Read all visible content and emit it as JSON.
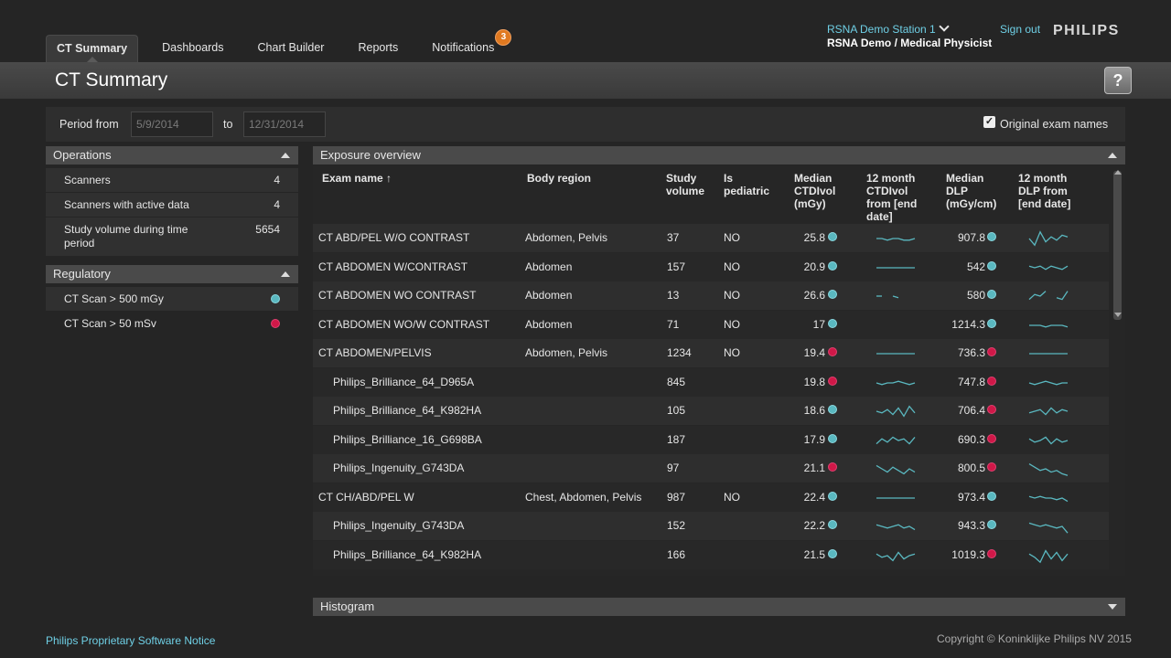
{
  "nav": {
    "tabs": [
      {
        "label": "CT Summary",
        "active": true
      },
      {
        "label": "Dashboards"
      },
      {
        "label": "Chart Builder"
      },
      {
        "label": "Reports"
      },
      {
        "label": "Notifications",
        "badge": "3"
      }
    ]
  },
  "header": {
    "station": "RSNA Demo Station 1",
    "user": "RSNA Demo / Medical Physicist",
    "sign_out": "Sign out",
    "logo": "PHILIPS"
  },
  "page": {
    "title": "CT Summary",
    "help": "?"
  },
  "filter": {
    "period_from_label": "Period from",
    "from": "5/9/2014",
    "to_label": "to",
    "to": "12/31/2014",
    "original_names_label": "Original exam names",
    "original_names_checked": true
  },
  "operations": {
    "title": "Operations",
    "rows": [
      {
        "label": "Scanners",
        "value": "4"
      },
      {
        "label": "Scanners with active data",
        "value": "4"
      },
      {
        "label": "Study volume during time period",
        "value": "5654"
      }
    ]
  },
  "regulatory": {
    "title": "Regulatory",
    "rows": [
      {
        "label": "CT Scan > 500 mGy",
        "status": "teal"
      },
      {
        "label": "CT Scan > 50 mSv",
        "status": "red"
      }
    ]
  },
  "exposure": {
    "title": "Exposure overview",
    "headers": {
      "exam": "Exam name ↑",
      "body": "Body region",
      "volume": "Study volume",
      "pediatric": "Is pediatric",
      "ctdi": "Median CTDIvol (mGy)",
      "ctdi_trend": "12 month CTDIvol from [end date]",
      "dlp": "Median DLP (mGy/cm)",
      "dlp_trend": "12 month DLP from [end date]"
    },
    "rows": [
      {
        "exam": "CT ABD/PEL W/O CONTRAST",
        "body": "Abdomen, Pelvis",
        "volume": "37",
        "pediatric": "NO",
        "ctdi": "25.8",
        "ctdi_status": "teal",
        "dlp": "907.8",
        "dlp_status": "teal",
        "indent": false,
        "ctdi_spark": [
          5,
          5,
          4,
          5,
          5,
          4,
          4,
          5
        ],
        "dlp_spark": [
          5,
          1,
          9,
          3,
          6,
          4,
          7,
          6
        ]
      },
      {
        "exam": "CT ABDOMEN W/CONTRAST",
        "body": "Abdomen",
        "volume": "157",
        "pediatric": "NO",
        "ctdi": "20.9",
        "ctdi_status": "teal",
        "dlp": "542",
        "dlp_status": "teal",
        "indent": false,
        "ctdi_spark": [
          5,
          5,
          5,
          5,
          5,
          5,
          5,
          5
        ],
        "dlp_spark": [
          6,
          5,
          6,
          4,
          6,
          5,
          4,
          6
        ]
      },
      {
        "exam": "CT ABDOMEN WO CONTRAST",
        "body": "Abdomen",
        "volume": "13",
        "pediatric": "NO",
        "ctdi": "26.6",
        "ctdi_status": "teal",
        "dlp": "580",
        "dlp_status": "teal",
        "indent": false,
        "ctdi_spark": [
          5,
          5,
          null,
          5,
          4,
          null,
          null,
          null
        ],
        "dlp_spark": [
          3,
          6,
          5,
          8,
          null,
          4,
          3,
          8
        ]
      },
      {
        "exam": "CT ABDOMEN WO/W CONTRAST",
        "body": "Abdomen",
        "volume": "71",
        "pediatric": "NO",
        "ctdi": "17",
        "ctdi_status": "teal",
        "dlp": "1214.3",
        "dlp_status": "teal",
        "indent": false,
        "ctdi_spark": [
          null,
          null,
          null,
          null,
          null,
          null,
          null,
          null
        ],
        "dlp_spark": [
          5,
          5,
          5,
          4,
          5,
          5,
          5,
          4
        ]
      },
      {
        "exam": "CT ABDOMEN/PELVIS",
        "body": "Abdomen, Pelvis",
        "volume": "1234",
        "pediatric": "NO",
        "ctdi": "19.4",
        "ctdi_status": "red",
        "dlp": "736.3",
        "dlp_status": "red",
        "indent": false,
        "ctdi_spark": [
          5,
          5,
          5,
          5,
          5,
          5,
          5,
          5
        ],
        "dlp_spark": [
          5,
          5,
          5,
          5,
          5,
          5,
          5,
          5
        ]
      },
      {
        "exam": "Philips_Brilliance_64_D965A",
        "body": "",
        "volume": "845",
        "pediatric": "",
        "ctdi": "19.8",
        "ctdi_status": "red",
        "dlp": "747.8",
        "dlp_status": "red",
        "indent": true,
        "ctdi_spark": [
          5,
          4,
          5,
          5,
          6,
          5,
          4,
          5
        ],
        "dlp_spark": [
          5,
          4,
          5,
          6,
          5,
          4,
          5,
          5
        ]
      },
      {
        "exam": "Philips_Brilliance_64_K982HA",
        "body": "",
        "volume": "105",
        "pediatric": "",
        "ctdi": "18.6",
        "ctdi_status": "teal",
        "dlp": "706.4",
        "dlp_status": "red",
        "indent": true,
        "ctdi_spark": [
          5,
          4,
          6,
          3,
          7,
          2,
          8,
          4
        ],
        "dlp_spark": [
          4,
          5,
          6,
          3,
          7,
          4,
          6,
          5
        ]
      },
      {
        "exam": "Philips_Brilliance_16_G698BA",
        "body": "",
        "volume": "187",
        "pediatric": "",
        "ctdi": "17.9",
        "ctdi_status": "teal",
        "dlp": "690.3",
        "dlp_status": "red",
        "indent": true,
        "ctdi_spark": [
          3,
          6,
          4,
          7,
          5,
          6,
          3,
          7
        ],
        "dlp_spark": [
          6,
          4,
          5,
          7,
          3,
          6,
          4,
          5
        ]
      },
      {
        "exam": "Philips_Ingenuity_G743DA",
        "body": "",
        "volume": "97",
        "pediatric": "",
        "ctdi": "21.1",
        "ctdi_status": "red",
        "dlp": "800.5",
        "dlp_status": "red",
        "indent": true,
        "ctdi_spark": [
          7,
          5,
          3,
          6,
          4,
          2,
          5,
          3
        ],
        "dlp_spark": [
          8,
          6,
          4,
          5,
          3,
          4,
          2,
          1
        ]
      },
      {
        "exam": "CT CH/ABD/PEL W",
        "body": "Chest, Abdomen, Pelvis",
        "volume": "987",
        "pediatric": "NO",
        "ctdi": "22.4",
        "ctdi_status": "teal",
        "dlp": "973.4",
        "dlp_status": "teal",
        "indent": false,
        "ctdi_spark": [
          5,
          5,
          5,
          5,
          5,
          5,
          5,
          5
        ],
        "dlp_spark": [
          6,
          5,
          6,
          5,
          5,
          4,
          5,
          3
        ]
      },
      {
        "exam": "Philips_Ingenuity_G743DA",
        "body": "",
        "volume": "152",
        "pediatric": "",
        "ctdi": "22.2",
        "ctdi_status": "teal",
        "dlp": "943.3",
        "dlp_status": "teal",
        "indent": true,
        "ctdi_spark": [
          6,
          5,
          4,
          5,
          6,
          4,
          5,
          3
        ],
        "dlp_spark": [
          7,
          6,
          5,
          6,
          5,
          4,
          5,
          1
        ]
      },
      {
        "exam": "Philips_Brilliance_64_K982HA",
        "body": "",
        "volume": "166",
        "pediatric": "",
        "ctdi": "21.5",
        "ctdi_status": "teal",
        "dlp": "1019.3",
        "dlp_status": "red",
        "indent": true,
        "ctdi_spark": [
          6,
          4,
          5,
          2,
          7,
          3,
          5,
          6
        ],
        "dlp_spark": [
          6,
          4,
          1,
          8,
          3,
          7,
          2,
          6
        ]
      }
    ]
  },
  "histogram": {
    "title": "Histogram"
  },
  "footer": {
    "notice": "Philips Proprietary Software Notice",
    "copyright": "Copyright © Koninklijke Philips NV 2015"
  },
  "colors": {
    "teal": "#5ab8c0",
    "red": "#d01848",
    "link": "#6fd0e6",
    "spark": "#5ab8c0",
    "badge": "#e07920"
  }
}
